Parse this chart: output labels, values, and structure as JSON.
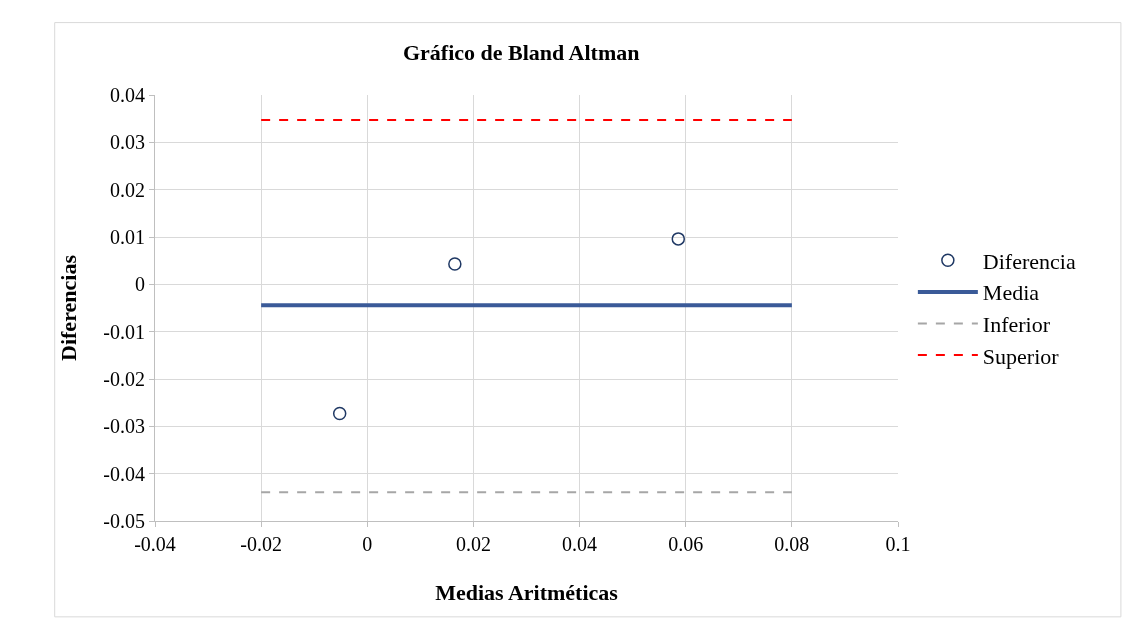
{
  "chart_data": {
    "type": "scatter",
    "title": "Gráfico de Bland Altman",
    "xlabel": "Medias Aritméticas",
    "ylabel": "Diferencias",
    "xlim": [
      -0.04,
      0.1
    ],
    "xticks": [
      -0.04,
      -0.02,
      0,
      0.02,
      0.04,
      0.06,
      0.08,
      0.1
    ],
    "ylim": [
      -0.05,
      0.04
    ],
    "yticks": [
      -0.05,
      -0.04,
      -0.03,
      -0.02,
      -0.01,
      0,
      0.01,
      0.02,
      0.03,
      0.04
    ],
    "grid": true,
    "legend": "right",
    "series": [
      {
        "name": "Diferencia",
        "marker": "circle",
        "color": "#1f3864",
        "x": [
          -0.0052,
          0.0165,
          0.0586
        ],
        "values": [
          -0.0273,
          0.0043,
          0.0096
        ]
      },
      {
        "name": "Media",
        "type": "line",
        "marker": "none",
        "line_style": "solid",
        "color": "#3a5a98",
        "x": [
          -0.02,
          0.08
        ],
        "values": [
          -0.0044,
          -0.0044
        ]
      },
      {
        "name": "Inferior",
        "type": "line",
        "marker": "none",
        "line_style": "dashed",
        "color": "#a6a6a6",
        "x": [
          -0.02,
          0.08
        ],
        "values": [
          -0.0439,
          -0.0439
        ]
      },
      {
        "name": "Superior",
        "type": "line",
        "marker": "none",
        "line_style": "dashed",
        "color": "#ff0000",
        "x": [
          -0.02,
          0.08
        ],
        "values": [
          0.0347,
          0.0347
        ]
      }
    ]
  }
}
